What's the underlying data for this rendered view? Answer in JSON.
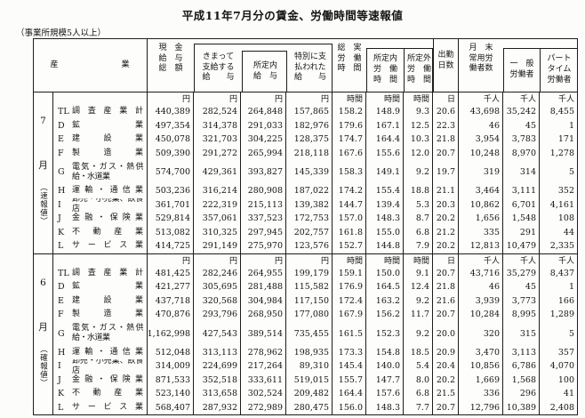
{
  "title": "平成11年7月分の賃金、労働時間等速報値",
  "subtitle": "（事業所規模5人以上）",
  "table": {
    "industry_header": "産　　　　　　　業",
    "columns": [
      {
        "label": "現　金\n給　与\n総　額",
        "unit": "円"
      },
      {
        "label": "きまって\n支給する\n給　　与",
        "unit": "円"
      },
      {
        "label": "所定内\n給　与",
        "unit": "円"
      },
      {
        "label": "特別に支\n払われた\n給　　与",
        "unit": "円"
      },
      {
        "label": "総　実\n労　働\n時　間",
        "unit": "時間"
      },
      {
        "label": "所定内\n労　働\n時　間",
        "unit": "時間"
      },
      {
        "label": "所定外\n労　働\n時　間",
        "unit": "時間"
      },
      {
        "label": "出勤\n日数",
        "unit": "日"
      },
      {
        "label": "月　末\n常用労\n働者数",
        "unit": "千人"
      },
      {
        "label": "一　般\n労働者",
        "unit": "千人"
      },
      {
        "label": "パート\nタイム\n労働者",
        "unit": "千人"
      }
    ],
    "blocks": [
      {
        "period": [
          "7",
          "月",
          "（速報値）"
        ],
        "rows": [
          {
            "code": "TL",
            "name": "調査産業計",
            "values": [
              "440,389",
              "282,524",
              "264,848",
              "157,865",
              "158.2",
              "148.9",
              "9.3",
              "20.6",
              "43,698",
              "35,242",
              "8,455"
            ]
          },
          {
            "code": "D",
            "name": "鉱業",
            "values": [
              "497,354",
              "314,378",
              "291,033",
              "182,976",
              "179.6",
              "167.1",
              "12.5",
              "22.3",
              "46",
              "45",
              "1"
            ]
          },
          {
            "code": "E",
            "name": "建設業",
            "values": [
              "450,078",
              "321,703",
              "304,225",
              "128,375",
              "174.7",
              "164.4",
              "10.3",
              "21.8",
              "3,954",
              "3,783",
              "171"
            ]
          },
          {
            "code": "F",
            "name": "製造業",
            "values": [
              "509,390",
              "291,272",
              "265,994",
              "218,118",
              "167.6",
              "155.6",
              "12.0",
              "20.7",
              "10,248",
              "8,970",
              "1,278"
            ]
          },
          {
            "code": "G",
            "name": "電気・ガス・熱供給・水道業",
            "ml": true,
            "values": [
              "574,700",
              "429,361",
              "393,827",
              "145,339",
              "158.3",
              "149.1",
              "9.2",
              "19.7",
              "319",
              "314",
              "5"
            ]
          },
          {
            "code": "H",
            "name": "運輸・通信業",
            "values": [
              "503,236",
              "316,214",
              "280,908",
              "187,022",
              "174.2",
              "155.4",
              "18.8",
              "21.1",
              "3,464",
              "3,111",
              "352"
            ]
          },
          {
            "code": "I",
            "name": "卸売・小売業、飲食店",
            "values": [
              "361,701",
              "222,319",
              "215,113",
              "139,382",
              "144.7",
              "139.4",
              "5.3",
              "20.3",
              "10,862",
              "6,701",
              "4,161"
            ]
          },
          {
            "code": "J",
            "name": "金融・保険業",
            "values": [
              "529,814",
              "357,061",
              "337,523",
              "172,753",
              "157.0",
              "148.3",
              "8.7",
              "20.2",
              "1,656",
              "1,548",
              "108"
            ]
          },
          {
            "code": "K",
            "name": "不動産業",
            "values": [
              "513,082",
              "310,325",
              "297,945",
              "202,757",
              "161.8",
              "155.0",
              "6.8",
              "21.2",
              "335",
              "291",
              "44"
            ]
          },
          {
            "code": "L",
            "name": "サービス業",
            "values": [
              "414,725",
              "291,149",
              "275,970",
              "123,576",
              "152.7",
              "144.8",
              "7.9",
              "20.2",
              "12,813",
              "10,479",
              "2,335"
            ]
          }
        ]
      },
      {
        "period": [
          "6",
          "月",
          "（確報値）"
        ],
        "rows": [
          {
            "code": "TL",
            "name": "調査産業計",
            "values": [
              "481,425",
              "282,246",
              "264,955",
              "199,179",
              "159.1",
              "150.0",
              "9.1",
              "20.7",
              "43,716",
              "35,279",
              "8,437"
            ]
          },
          {
            "code": "D",
            "name": "鉱業",
            "values": [
              "421,277",
              "305,695",
              "281,488",
              "115,582",
              "176.9",
              "164.5",
              "12.4",
              "21.8",
              "46",
              "45",
              "1"
            ]
          },
          {
            "code": "E",
            "name": "建設業",
            "values": [
              "437,718",
              "320,568",
              "304,984",
              "117,150",
              "172.4",
              "163.2",
              "9.2",
              "21.6",
              "3,939",
              "3,773",
              "166"
            ]
          },
          {
            "code": "F",
            "name": "製造業",
            "values": [
              "470,876",
              "293,796",
              "268,950",
              "177,080",
              "167.9",
              "156.2",
              "11.7",
              "20.7",
              "10,284",
              "8,995",
              "1,289"
            ]
          },
          {
            "code": "G",
            "name": "電気・ガス・熱供給・水道業",
            "ml": true,
            "values": [
              "1,162,998",
              "427,543",
              "389,514",
              "735,455",
              "161.5",
              "152.3",
              "9.2",
              "20.0",
              "320",
              "315",
              "5"
            ]
          },
          {
            "code": "H",
            "name": "運輸・通信業",
            "values": [
              "512,048",
              "313,113",
              "278,962",
              "198,935",
              "173.3",
              "154.8",
              "18.5",
              "20.9",
              "3,470",
              "3,113",
              "357"
            ]
          },
          {
            "code": "I",
            "name": "卸売・小売業、飲食店",
            "values": [
              "314,009",
              "224,699",
              "217,264",
              "89,310",
              "145.4",
              "140.0",
              "5.4",
              "20.4",
              "10,856",
              "6,786",
              "4,070"
            ]
          },
          {
            "code": "J",
            "name": "金融・保険業",
            "values": [
              "871,533",
              "352,518",
              "333,611",
              "519,015",
              "155.7",
              "147.7",
              "8.0",
              "20.2",
              "1,669",
              "1,568",
              "100"
            ]
          },
          {
            "code": "K",
            "name": "不動産業",
            "values": [
              "523,140",
              "313,658",
              "302,524",
              "209,482",
              "164.4",
              "157.6",
              "6.8",
              "21.5",
              "336",
              "296",
              "41"
            ]
          },
          {
            "code": "L",
            "name": "サービス業",
            "values": [
              "568,407",
              "287,932",
              "272,989",
              "280,475",
              "156.0",
              "148.3",
              "7.7",
              "20.7",
              "12,796",
              "10,389",
              "2,408"
            ]
          }
        ]
      }
    ]
  }
}
